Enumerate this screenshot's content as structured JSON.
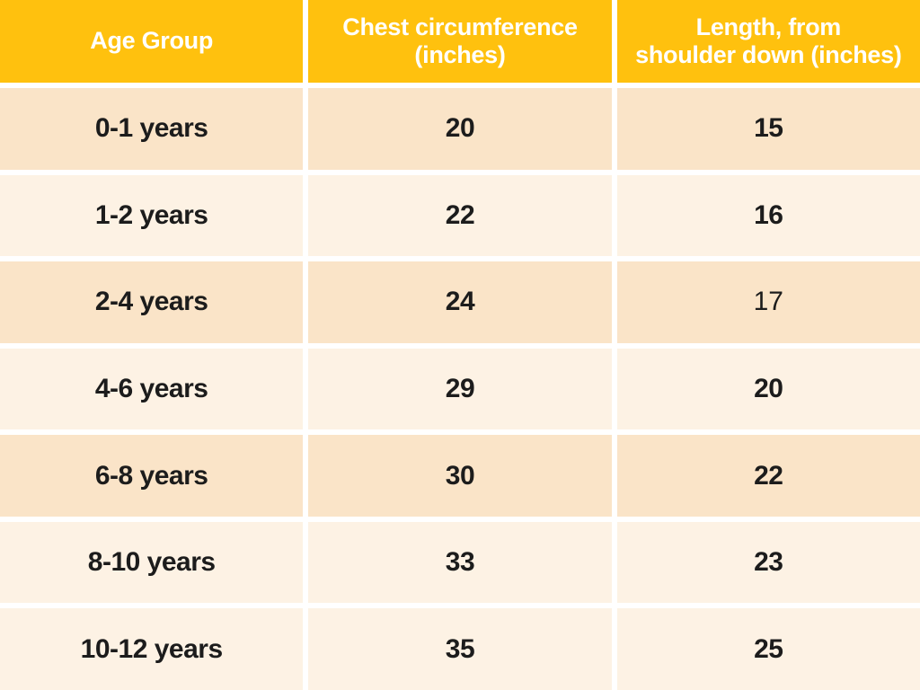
{
  "colors": {
    "header_bg": "#FFC10E",
    "header_text": "#FFFFFF",
    "row_dark_bg": "#FAE4C8",
    "row_light_bg": "#FDF2E4",
    "body_text": "#1C1C1C",
    "gap": "#FFFFFF"
  },
  "header_labels": {
    "age": "Age Group",
    "chest": "Chest circumference\n(inches)",
    "length": "Length, from\nshoulder down (inches)"
  },
  "chart_data": {
    "type": "table",
    "columns": [
      "Age Group",
      "Chest circumference (inches)",
      "Length, from shoulder down (inches)"
    ],
    "rows": [
      [
        "0-1 years",
        20,
        15
      ],
      [
        "1-2 years",
        22,
        16
      ],
      [
        "2-4 years",
        24,
        17
      ],
      [
        "4-6 years",
        29,
        20
      ],
      [
        "6-8 years",
        30,
        22
      ],
      [
        "8-10 years",
        33,
        23
      ],
      [
        "10-12 years",
        35,
        25
      ]
    ]
  }
}
